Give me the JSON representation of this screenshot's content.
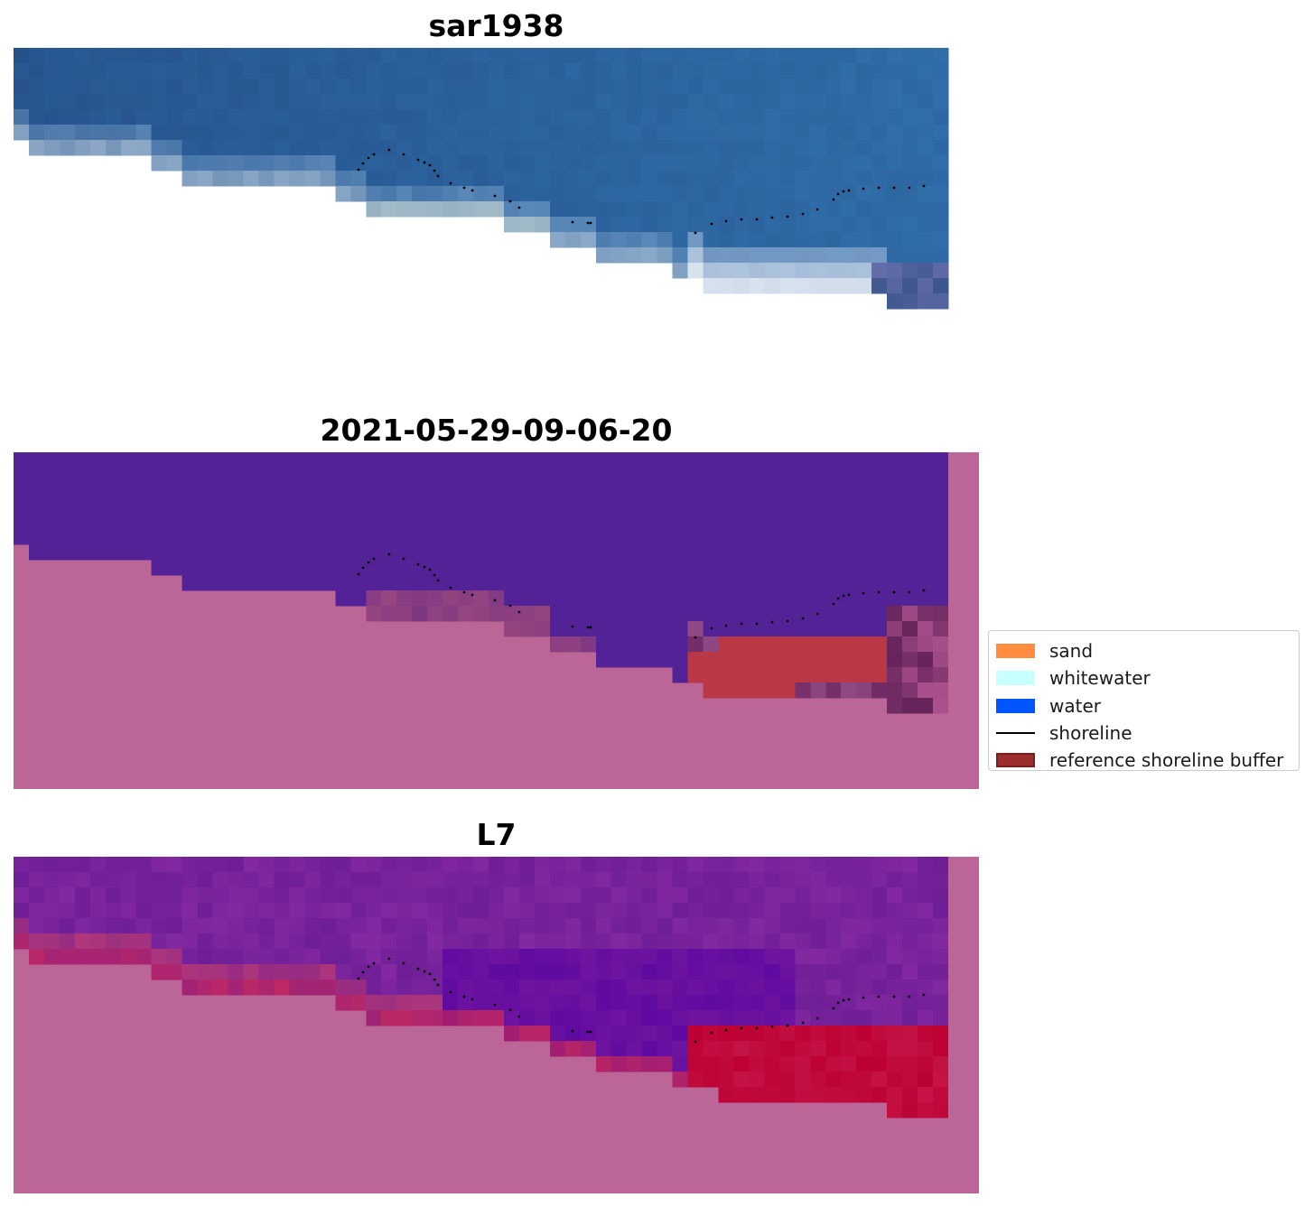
{
  "panels": [
    {
      "id": "top",
      "title": "sar1938",
      "kind": "rgb"
    },
    {
      "id": "middle",
      "title": "2021-05-29-09-06-20",
      "kind": "classification"
    },
    {
      "id": "bottom",
      "title": "L7",
      "kind": "index"
    }
  ],
  "legend": {
    "items": [
      {
        "label": "sand",
        "color": "#ff8c3f",
        "type": "patch"
      },
      {
        "label": "whitewater",
        "color": "#c8ffff",
        "type": "patch"
      },
      {
        "label": "water",
        "color": "#0055ff",
        "type": "patch"
      },
      {
        "label": "shoreline",
        "color": "#000000",
        "type": "line"
      },
      {
        "label": "reference shoreline buffer",
        "color": "#9b2d2d",
        "type": "patch"
      }
    ]
  },
  "colors": {
    "no_data_fill": "#bc6697",
    "water_class": "#532296",
    "buffer_overlay": "#b83645",
    "shoreline_points": "#000000"
  }
}
